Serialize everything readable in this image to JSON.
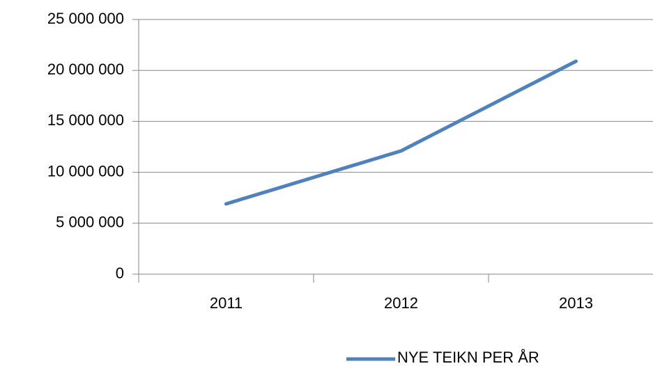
{
  "chart_data": {
    "type": "line",
    "categories": [
      "2011",
      "2012",
      "2013"
    ],
    "series": [
      {
        "name": "NYE TEIKN PER ÅR",
        "color": "#4f81bd",
        "values": [
          6900000,
          12100000,
          20900000
        ]
      }
    ],
    "ylim": [
      0,
      25000000
    ],
    "yticks": [
      0,
      {
        "value": 5000000,
        "label": "5 000 000"
      },
      {
        "value": 10000000,
        "label": "10 000 000"
      },
      {
        "value": 15000000,
        "label": "15 000 000"
      },
      {
        "value": 20000000,
        "label": "20 000 000"
      },
      {
        "value": 25000000,
        "label": "25 000 000"
      }
    ],
    "grid": true,
    "legend": "bottom"
  }
}
